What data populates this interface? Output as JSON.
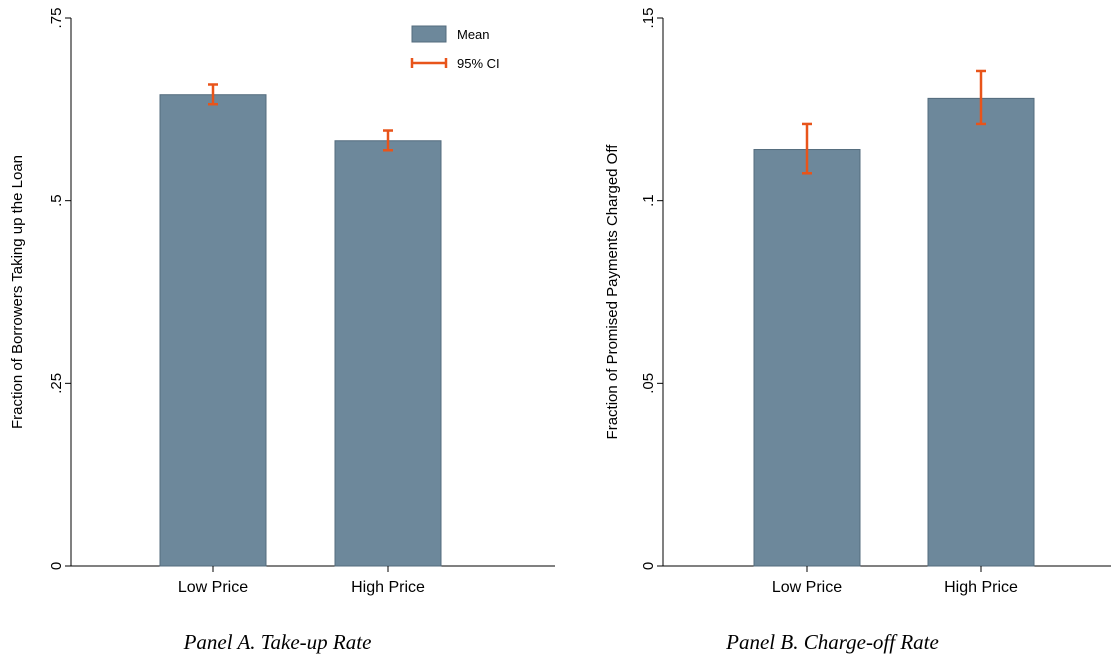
{
  "colors": {
    "bar": "#6d889b",
    "bar_edge": "#536b7d",
    "ci": "#e8541a",
    "axis": "#000000"
  },
  "chart_data": [
    {
      "type": "bar",
      "caption": "Panel A. Take-up Rate",
      "categories": [
        "Low Price",
        "High Price"
      ],
      "series": [
        {
          "name": "Mean",
          "values": [
            0.645,
            0.582
          ]
        }
      ],
      "ci": {
        "name": "95% CI",
        "lower": [
          0.632,
          0.569
        ],
        "upper": [
          0.659,
          0.596
        ]
      },
      "ylabel": "Fraction of Borrowers Taking up the Loan",
      "ylim": [
        0,
        0.75
      ],
      "yticks": [
        0,
        0.25,
        0.5,
        0.75
      ],
      "ytick_labels": [
        "0",
        ".25",
        ".5",
        ".75"
      ],
      "legend": {
        "position": "top-right",
        "entries": [
          "Mean",
          "95% CI"
        ]
      },
      "grid": false
    },
    {
      "type": "bar",
      "caption": "Panel B. Charge-off Rate",
      "categories": [
        "Low Price",
        "High Price"
      ],
      "series": [
        {
          "name": "Mean",
          "values": [
            0.114,
            0.128
          ]
        }
      ],
      "ci": {
        "name": "95% CI",
        "lower": [
          0.1075,
          0.121
        ],
        "upper": [
          0.121,
          0.1355
        ]
      },
      "ylabel": "Fraction of Promised Payments Charged Off",
      "ylim": [
        0,
        0.15
      ],
      "yticks": [
        0,
        0.05,
        0.1,
        0.15
      ],
      "ytick_labels": [
        "0",
        ".05",
        ".1",
        ".15"
      ],
      "grid": false
    }
  ]
}
